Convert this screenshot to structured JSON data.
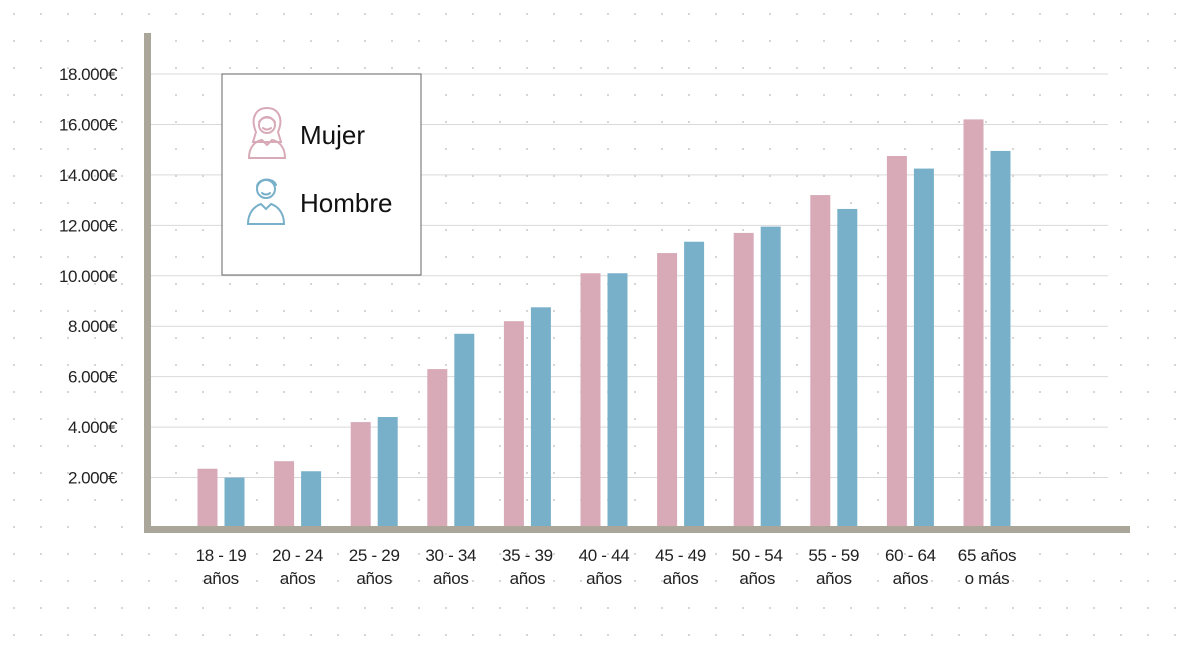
{
  "chart_data": {
    "type": "bar",
    "categories": [
      [
        "18 - 19",
        "años"
      ],
      [
        "20 - 24",
        "años"
      ],
      [
        "25 - 29",
        "años"
      ],
      [
        "30 - 34",
        "años"
      ],
      [
        "35 - 39",
        "años"
      ],
      [
        "40 - 44",
        "años"
      ],
      [
        "45 - 49",
        "años"
      ],
      [
        "50 - 54",
        "años"
      ],
      [
        "55 - 59",
        "años"
      ],
      [
        "60 - 64",
        "años"
      ],
      [
        "65 años",
        "o más"
      ]
    ],
    "series": [
      {
        "name": "Mujer",
        "color": "#d8aab8",
        "icon": "woman-icon",
        "values": [
          2350,
          2650,
          4200,
          6300,
          8200,
          10100,
          10900,
          11700,
          13200,
          14750,
          16200
        ]
      },
      {
        "name": "Hombre",
        "color": "#78b0c9",
        "icon": "man-icon",
        "values": [
          2000,
          2250,
          4400,
          7700,
          8750,
          10100,
          11350,
          11950,
          12650,
          14250,
          14950
        ]
      }
    ],
    "y_ticks": [
      "2.000€",
      "4.000€",
      "6.000€",
      "8.000€",
      "10.000€",
      "12.000€",
      "14.000€",
      "16.000€",
      "18.000€"
    ],
    "y_tick_values": [
      2000,
      4000,
      6000,
      8000,
      10000,
      12000,
      14000,
      16000,
      18000
    ],
    "ylim": [
      0,
      18000
    ],
    "grid": true,
    "legend_position": "top-left",
    "axis_color": "#aaa79a",
    "grid_color": "#d9d9d9"
  }
}
